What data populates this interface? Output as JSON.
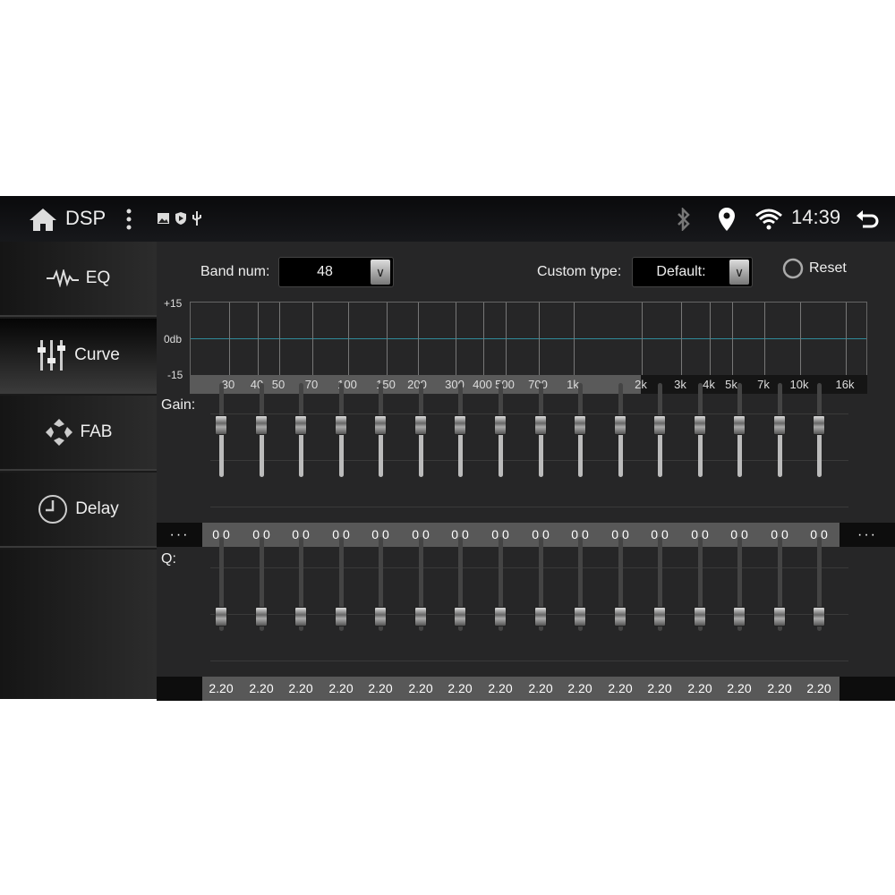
{
  "status_bar": {
    "title": "DSP",
    "time": "14:39",
    "icons": [
      "home-icon",
      "more-vert-icon",
      "image-icon",
      "shield-play-icon",
      "usb-icon",
      "bluetooth-icon",
      "location-icon",
      "wifi-icon",
      "back-icon"
    ]
  },
  "sidebar": {
    "items": [
      {
        "label": "EQ",
        "icon": "waveform-icon"
      },
      {
        "label": "Curve",
        "icon": "sliders-icon",
        "selected": true
      },
      {
        "label": "FAB",
        "icon": "fader-balance-icon"
      },
      {
        "label": "Delay",
        "icon": "clock-icon"
      }
    ]
  },
  "controls": {
    "band_num_label": "Band num:",
    "band_num_value": "48",
    "custom_type_label": "Custom type:",
    "custom_type_value": "Default:",
    "reset_label": "Reset"
  },
  "curve_chart": {
    "y_ticks": [
      "+15",
      "0db",
      "-15"
    ],
    "x_ticks": [
      "30",
      "40",
      "50",
      "70",
      "100",
      "150",
      "200",
      "300",
      "400",
      "500",
      "700",
      "1k",
      "2k",
      "3k",
      "4k",
      "5k",
      "7k",
      "10k",
      "16k"
    ],
    "curve_color": "#2f8a9a"
  },
  "gain": {
    "label": "Gain:",
    "more": "···",
    "values": [
      "0.0",
      "0.0",
      "0.0",
      "0.0",
      "0.0",
      "0.0",
      "0.0",
      "0.0",
      "0.0",
      "0.0",
      "0.0",
      "0.0",
      "0.0",
      "0.0",
      "0.0",
      "0.0"
    ]
  },
  "q": {
    "label": "Q:",
    "values": [
      "2.20",
      "2.20",
      "2.20",
      "2.20",
      "2.20",
      "2.20",
      "2.20",
      "2.20",
      "2.20",
      "2.20",
      "2.20",
      "2.20",
      "2.20",
      "2.20",
      "2.20",
      "2.20"
    ]
  }
}
